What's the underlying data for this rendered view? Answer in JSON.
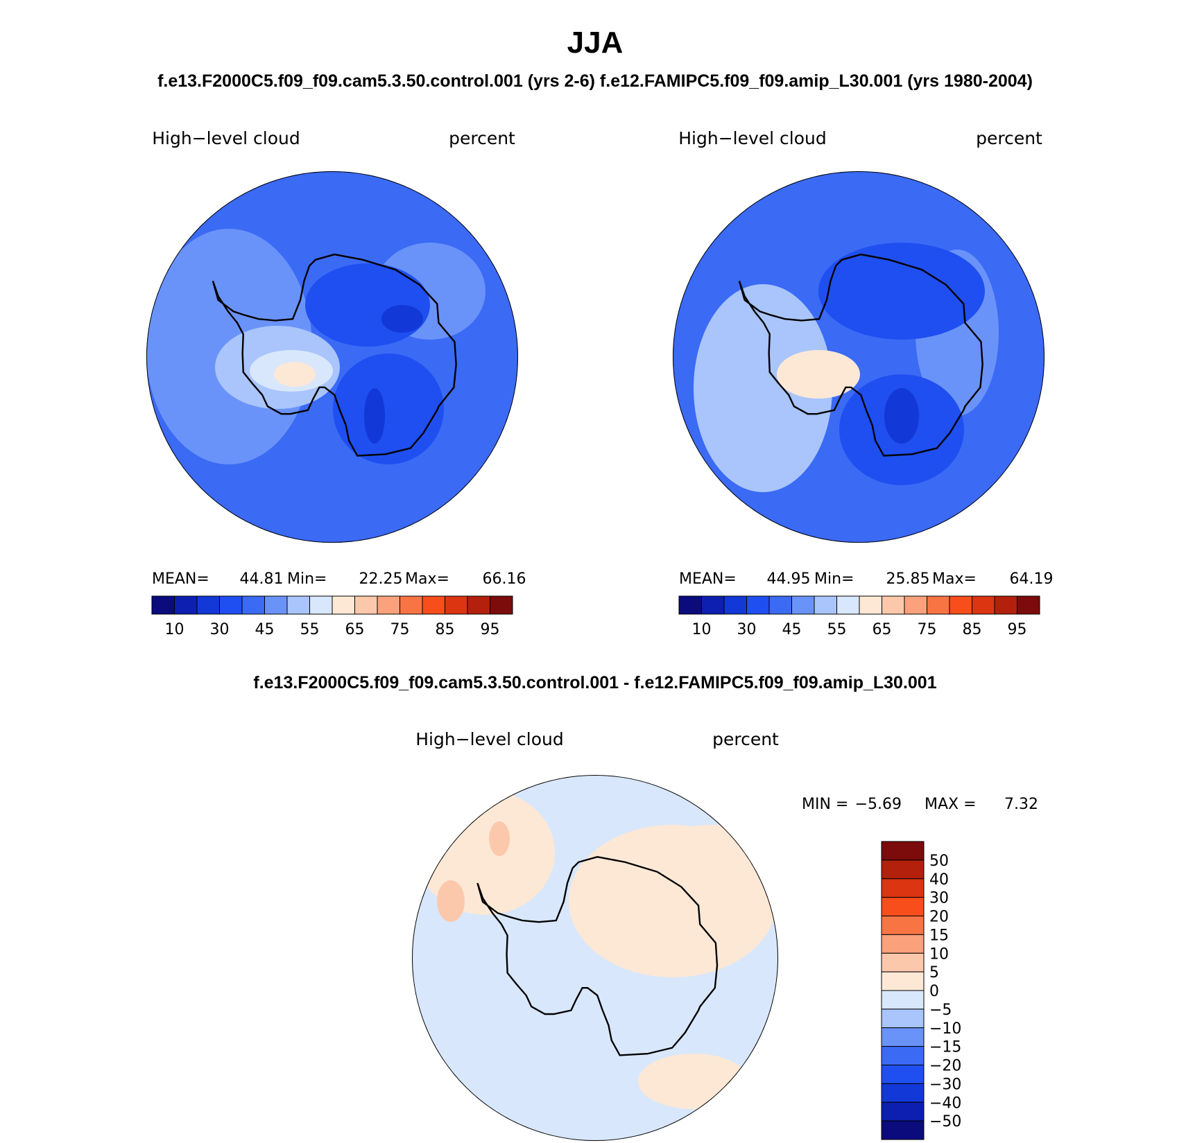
{
  "title": "JJA",
  "subtitle": "f.e13.F2000C5.f09_f09.cam5.3.50.control.001 (yrs 2-6)  f.e12.FAMIPC5.f09_f09.amip_L30.001 (yrs 1980-2004)",
  "panels": [
    {
      "label_left": "High−level cloud",
      "label_right": "percent",
      "stats": [
        "MEAN=",
        "44.81",
        "Min=",
        "22.25",
        "Max=",
        "66.16"
      ]
    },
    {
      "label_left": "High−level cloud",
      "label_right": "percent",
      "stats": [
        "MEAN=",
        "44.95",
        "Min=",
        "25.85",
        "Max=",
        "64.19"
      ]
    }
  ],
  "colorbar": {
    "colors": [
      "#0b0b7e",
      "#0c1fb0",
      "#1238d8",
      "#1f4ff0",
      "#3b6af5",
      "#6a93fa",
      "#a9c5fb",
      "#d8e7fb",
      "#fde8d6",
      "#fcc8ab",
      "#fba17c",
      "#f87443",
      "#f84e1c",
      "#dc3512",
      "#b3200c",
      "#7c0b0b"
    ],
    "labels": [
      "10",
      "30",
      "45",
      "55",
      "65",
      "75",
      "85",
      "95"
    ]
  },
  "diff": {
    "title": "f.e13.F2000C5.f09_f09.cam5.3.50.control.001 - f.e12.FAMIPC5.f09_f09.amip_L30.001",
    "label_left": "High−level cloud",
    "label_right": "percent",
    "stats": [
      "MIN =",
      "−5.69",
      "MAX =",
      "7.32"
    ],
    "colors": [
      "#7c0b0b",
      "#b3200c",
      "#dc3512",
      "#f84e1c",
      "#f87443",
      "#fba17c",
      "#fcc8ab",
      "#fde8d6",
      "#d8e7fb",
      "#a9c5fb",
      "#6a93fa",
      "#3b6af5",
      "#1f4ff0",
      "#1238d8",
      "#0c1fb0",
      "#0b0b7e"
    ],
    "labels": [
      "50",
      "40",
      "30",
      "20",
      "15",
      "10",
      "5",
      "0",
      "−5",
      "−10",
      "−15",
      "−20",
      "−30",
      "−40",
      "−50"
    ]
  }
}
